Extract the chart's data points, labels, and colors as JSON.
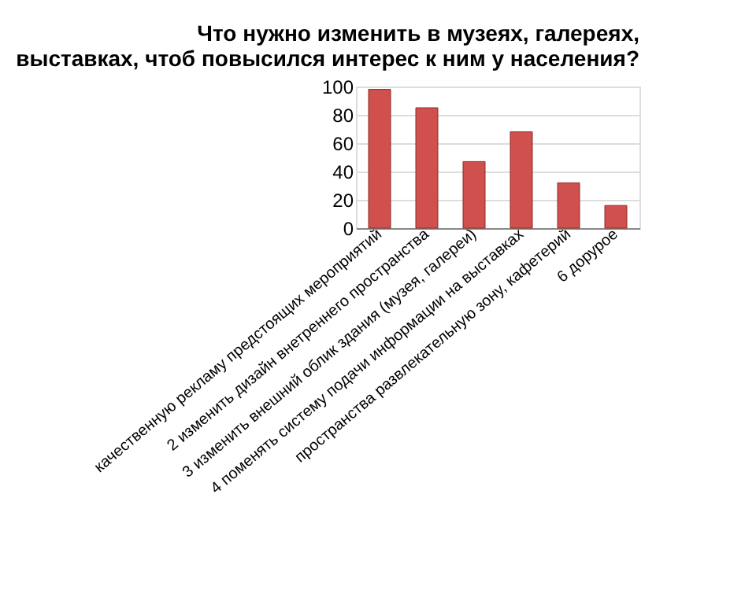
{
  "chart_data": {
    "type": "bar",
    "title": [
      "Что нужно изменить в музеях, галереях,",
      "выставках, чтоб повысился интерес к ним у населения?"
    ],
    "categories": [
      "качественную рекламу предстоящих мероприятий",
      "2 изменить дизайн внетреннего пространства",
      "3 изменить внешний облик здания (музея, галереи)",
      "4 поменять систему подачи информации на выставках",
      "пространства развлекательную зону, кафетерий",
      "6 дорурое"
    ],
    "values": [
      98,
      85,
      47,
      68,
      32,
      16
    ],
    "color": "#d0504d",
    "ylim": [
      0,
      100
    ],
    "yticks": [
      0,
      20,
      40,
      60,
      80,
      100
    ],
    "grid": "y"
  }
}
